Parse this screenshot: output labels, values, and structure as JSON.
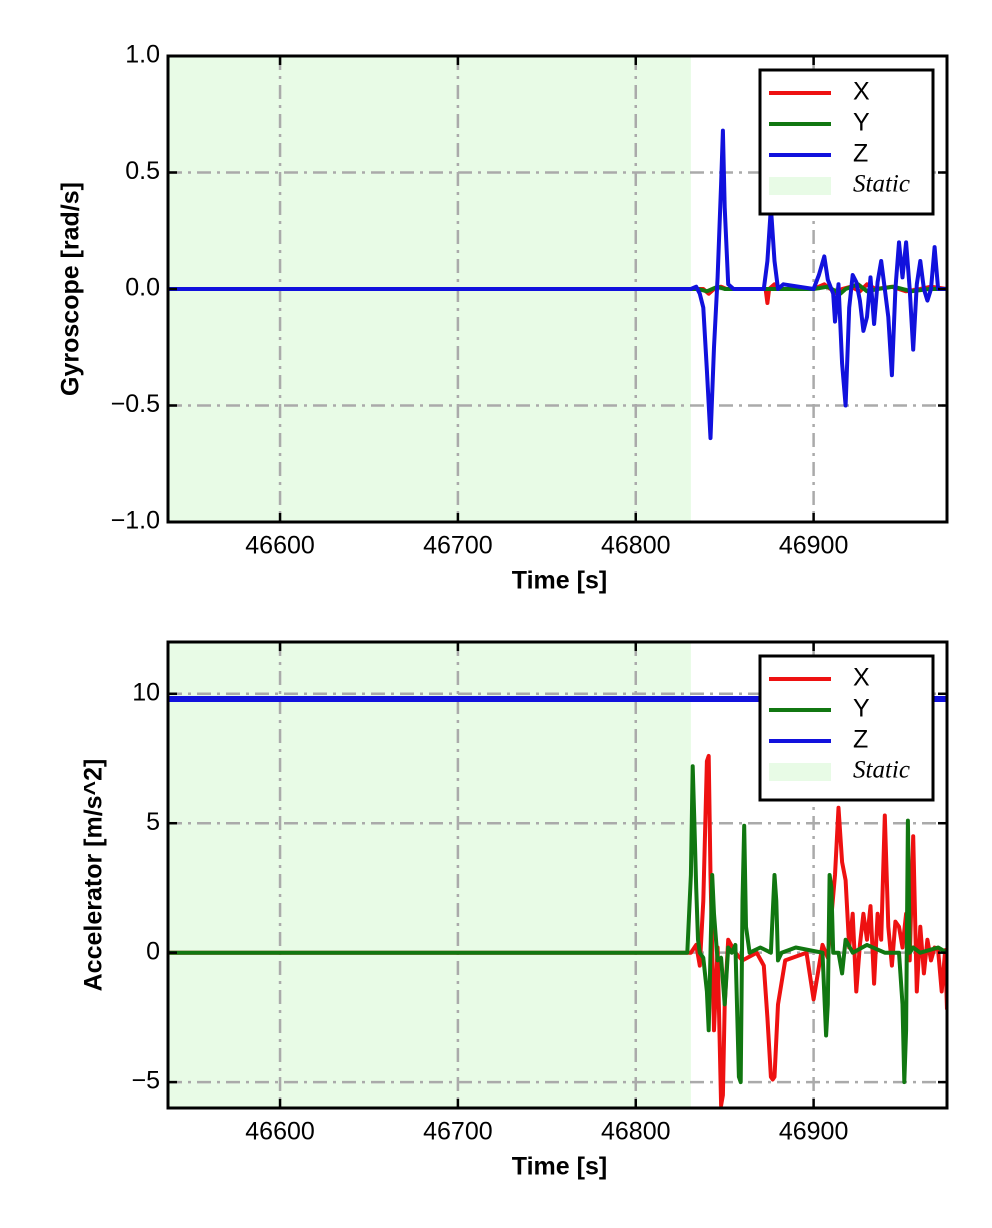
{
  "chart_data": [
    {
      "type": "line",
      "xlabel": "Time [s]",
      "ylabel": "Gyroscope [rad/s]",
      "xlim": [
        46537,
        46975
      ],
      "ylim": [
        -1.0,
        1.0
      ],
      "xticks": [
        46600,
        46700,
        46800,
        46900
      ],
      "xtick_labels": [
        "46600",
        "46700",
        "46800",
        "46900"
      ],
      "yticks": [
        -1.0,
        -0.5,
        0.0,
        0.5,
        1.0
      ],
      "ytick_labels": [
        "−1.0",
        "−0.5",
        "0.0",
        "0.5",
        "1.0"
      ],
      "grid": true,
      "legend_position": "top-right",
      "static_region": {
        "x": [
          46537,
          46831
        ],
        "label": "Static",
        "color": "#e8fbe6"
      },
      "series": [
        {
          "name": "X",
          "color": "#ee1111",
          "x": [
            46537,
            46832,
            46838,
            46841,
            46844,
            46848,
            46851,
            46873,
            46874,
            46875,
            46878,
            46882,
            46900,
            46906,
            46913,
            46916,
            46921,
            46926,
            46930,
            46935,
            46944,
            46952,
            46960,
            46966,
            46975
          ],
          "y": [
            0.0,
            0.0,
            0.0,
            -0.02,
            0.0,
            0.01,
            0.0,
            0.0,
            -0.06,
            0.0,
            0.02,
            0.0,
            0.0,
            0.02,
            -0.02,
            0.0,
            0.01,
            -0.01,
            0.02,
            0.0,
            0.01,
            -0.01,
            0.0,
            0.01,
            0.0
          ]
        },
        {
          "name": "Y",
          "color": "#117711",
          "x": [
            46537,
            46835,
            46840,
            46846,
            46850,
            46900,
            46908,
            46915,
            46918,
            46925,
            46930,
            46936,
            46945,
            46955,
            46965,
            46975
          ],
          "y": [
            0.0,
            0.0,
            -0.01,
            0.01,
            0.0,
            0.0,
            0.01,
            -0.02,
            0.0,
            0.02,
            -0.01,
            0.0,
            0.01,
            -0.01,
            0.0,
            0.0
          ]
        },
        {
          "name": "Z",
          "color": "#1111dd",
          "x": [
            46537,
            46831,
            46834,
            46836,
            46838,
            46840,
            46842,
            46844,
            46846,
            46848,
            46849,
            46850,
            46852,
            46855,
            46870,
            46872,
            46874,
            46876,
            46878,
            46880,
            46883,
            46900,
            46903,
            46906,
            46908,
            46911,
            46912,
            46914,
            46916,
            46918,
            46920,
            46922,
            46924,
            46926,
            46928,
            46930,
            46932,
            46934,
            46936,
            46938,
            46940,
            46942,
            46944,
            46946,
            46948,
            46950,
            46952,
            46954,
            46956,
            46958,
            46960,
            46962,
            46964,
            46966,
            46968,
            46970,
            46972,
            46974,
            46975
          ],
          "y": [
            0.0,
            0.0,
            0.01,
            -0.02,
            -0.08,
            -0.35,
            -0.64,
            -0.25,
            0.05,
            0.45,
            0.68,
            0.35,
            0.02,
            0.0,
            0.0,
            0.0,
            0.12,
            0.35,
            0.12,
            0.0,
            0.02,
            0.0,
            0.06,
            0.14,
            0.04,
            -0.02,
            -0.14,
            0.02,
            -0.32,
            -0.5,
            -0.08,
            0.06,
            0.03,
            -0.05,
            -0.18,
            -0.12,
            0.05,
            -0.15,
            0.03,
            0.12,
            0.0,
            -0.12,
            -0.37,
            0.0,
            0.2,
            0.05,
            0.2,
            0.0,
            -0.26,
            0.02,
            0.12,
            0.0,
            -0.05,
            0.0,
            0.18,
            0.0,
            0.0,
            0.0,
            0.0
          ]
        }
      ]
    },
    {
      "type": "line",
      "xlabel": "Time [s]",
      "ylabel": "Accelerator [m/s^2]",
      "xlim": [
        46537,
        46975
      ],
      "ylim": [
        -6.0,
        12.0
      ],
      "xticks": [
        46600,
        46700,
        46800,
        46900
      ],
      "xtick_labels": [
        "46600",
        "46700",
        "46800",
        "46900"
      ],
      "yticks": [
        -5,
        0,
        5,
        10
      ],
      "ytick_labels": [
        "−5",
        "0",
        "5",
        "10"
      ],
      "grid": true,
      "legend_position": "top-right",
      "static_region": {
        "x": [
          46537,
          46831
        ],
        "label": "Static",
        "color": "#e8fbe6"
      },
      "series": [
        {
          "name": "X",
          "color": "#ee1111",
          "x": [
            46537,
            46831,
            46834,
            46836,
            46838,
            46840,
            46841,
            46842,
            46844,
            46846,
            46848,
            46849,
            46850,
            46852,
            46856,
            46860,
            46868,
            46872,
            46874,
            46876,
            46877,
            46878,
            46880,
            46884,
            46896,
            46900,
            46905,
            46908,
            46912,
            46914,
            46916,
            46918,
            46920,
            46922,
            46924,
            46926,
            46928,
            46930,
            46932,
            46934,
            46936,
            46938,
            46940,
            46942,
            46944,
            46946,
            46948,
            46950,
            46952,
            46954,
            46956,
            46958,
            46960,
            46962,
            46964,
            46966,
            46968,
            46970,
            46972,
            46974,
            46975
          ],
          "y": [
            0.0,
            0.0,
            0.3,
            -0.5,
            2.0,
            7.4,
            7.6,
            3.0,
            -3.0,
            0.2,
            -5.9,
            -5.5,
            -2.0,
            0.5,
            0.0,
            -0.3,
            0.0,
            -0.5,
            -2.5,
            -4.8,
            -4.9,
            -4.8,
            -2.0,
            -0.3,
            0.0,
            -1.8,
            0.3,
            -0.2,
            3.0,
            5.6,
            3.5,
            2.8,
            0.2,
            1.5,
            -1.5,
            0.3,
            1.5,
            0.5,
            1.8,
            -1.2,
            1.5,
            0.5,
            5.3,
            1.0,
            -0.5,
            1.2,
            1.0,
            0.2,
            1.5,
            -0.3,
            4.5,
            -1.5,
            1.0,
            -0.8,
            0.5,
            -0.3,
            0.2,
            0.1,
            -1.5,
            0.1,
            -2.2
          ]
        },
        {
          "name": "Y",
          "color": "#117711",
          "x": [
            46537,
            46829,
            46831,
            46832,
            46833,
            46834,
            46835,
            46836,
            46838,
            46840,
            46841,
            46842,
            46843,
            46844,
            46846,
            46848,
            46850,
            46852,
            46854,
            46856,
            46858,
            46859,
            46860,
            46861,
            46862,
            46864,
            46870,
            46876,
            46878,
            46879,
            46880,
            46882,
            46890,
            46905,
            46907,
            46908,
            46909,
            46910,
            46911,
            46914,
            46916,
            46918,
            46922,
            46930,
            46940,
            46948,
            46950,
            46951,
            46952,
            46953,
            46954,
            46956,
            46960,
            46970,
            46975
          ],
          "y": [
            0.0,
            0.0,
            3.0,
            7.2,
            5.0,
            2.5,
            0.5,
            0.0,
            -0.2,
            -1.5,
            -3.0,
            0.0,
            3.0,
            1.5,
            -0.3,
            -0.2,
            -2.0,
            0.2,
            0.0,
            0.3,
            -4.8,
            -5.0,
            2.0,
            4.9,
            1.0,
            0.0,
            0.2,
            0.0,
            3.0,
            2.0,
            -0.3,
            0.0,
            0.2,
            0.0,
            -3.2,
            -2.0,
            3.0,
            2.5,
            0.0,
            0.0,
            -0.8,
            0.5,
            0.0,
            0.3,
            0.0,
            0.0,
            -2.0,
            -5.0,
            -3.0,
            5.1,
            0.0,
            0.2,
            0.0,
            0.2,
            0.0
          ]
        },
        {
          "name": "Z",
          "color": "#1111dd",
          "x": [
            46537,
            46975
          ],
          "y": [
            9.8,
            9.8
          ]
        }
      ]
    }
  ]
}
